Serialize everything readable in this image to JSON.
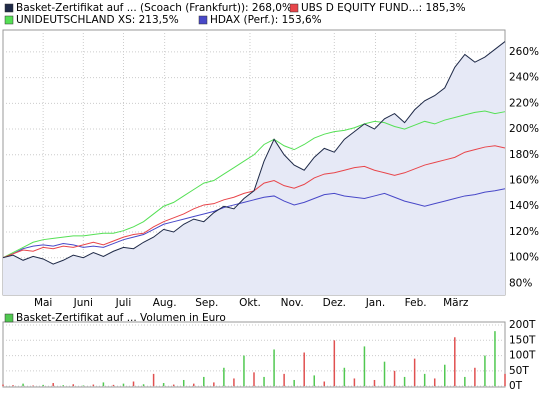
{
  "chart_data": [
    {
      "type": "line",
      "area_series": 0,
      "grid": true,
      "x": [
        0,
        1,
        2,
        3,
        4,
        5,
        6,
        7,
        8,
        9,
        10,
        11,
        12,
        13,
        14,
        15,
        16,
        17,
        18,
        19,
        20,
        21,
        22,
        23,
        24,
        25,
        26,
        27,
        28,
        29,
        30,
        31,
        32,
        33,
        34,
        35,
        36,
        37,
        38,
        39,
        40,
        41,
        42,
        43,
        44,
        45,
        46,
        47,
        48,
        49,
        50
      ],
      "xlim": [
        0,
        50
      ],
      "xticks": [
        {
          "value": 4,
          "label": "Mai"
        },
        {
          "value": 8,
          "label": "Juni"
        },
        {
          "value": 12,
          "label": "Juli"
        },
        {
          "value": 16.1,
          "label": "Aug."
        },
        {
          "value": 20.3,
          "label": "Sep."
        },
        {
          "value": 24.6,
          "label": "Okt."
        },
        {
          "value": 28.8,
          "label": "Nov."
        },
        {
          "value": 33,
          "label": "Dez."
        },
        {
          "value": 37.1,
          "label": "Jan."
        },
        {
          "value": 41.1,
          "label": "Feb."
        },
        {
          "value": 45.1,
          "label": "März"
        }
      ],
      "ylim": [
        71,
        277
      ],
      "yticks": [
        {
          "value": 80,
          "label": "80%"
        },
        {
          "value": 100,
          "label": "100%"
        },
        {
          "value": 120,
          "label": "120%"
        },
        {
          "value": 140,
          "label": "140%"
        },
        {
          "value": 160,
          "label": "160%"
        },
        {
          "value": 180,
          "label": "180%"
        },
        {
          "value": 200,
          "label": "200%"
        },
        {
          "value": 220,
          "label": "220%"
        },
        {
          "value": 240,
          "label": "240%"
        },
        {
          "value": 260,
          "label": "260%"
        }
      ],
      "series": [
        {
          "name": "Basket-Zertifikat auf ... (Scoach (Frankfurt)): 268,0%",
          "color": "#1f2a48",
          "values": [
            100,
            102,
            98,
            101,
            99,
            95,
            98,
            102,
            100,
            104,
            101,
            105,
            108,
            107,
            112,
            116,
            122,
            120,
            126,
            130,
            128,
            135,
            140,
            138,
            146,
            152,
            175,
            192,
            180,
            172,
            168,
            178,
            185,
            182,
            192,
            198,
            204,
            200,
            208,
            212,
            205,
            215,
            222,
            226,
            232,
            248,
            258,
            252,
            256,
            262,
            268
          ]
        },
        {
          "name": "UBS D EQUITY FUND...: 185,3%",
          "color": "#e8454a",
          "values": [
            100,
            103,
            106,
            105,
            108,
            107,
            109,
            108,
            110,
            112,
            110,
            113,
            116,
            118,
            119,
            124,
            128,
            131,
            134,
            138,
            141,
            142,
            145,
            147,
            150,
            152,
            158,
            160,
            156,
            154,
            157,
            162,
            165,
            166,
            168,
            170,
            171,
            168,
            166,
            164,
            166,
            169,
            172,
            174,
            176,
            178,
            182,
            184,
            186,
            187,
            185.3
          ]
        },
        {
          "name": "UNIDEUTSCHLAND XS: 213,5%",
          "color": "#55e055",
          "values": [
            100,
            104,
            108,
            112,
            114,
            115,
            116,
            117,
            117,
            118,
            119,
            119,
            121,
            124,
            128,
            134,
            140,
            143,
            148,
            153,
            158,
            160,
            165,
            170,
            175,
            180,
            188,
            192,
            187,
            184,
            188,
            193,
            196,
            198,
            199,
            201,
            204,
            206,
            205,
            202,
            200,
            203,
            206,
            204,
            207,
            209,
            211,
            213,
            214,
            212,
            213.5
          ]
        },
        {
          "name": "HDAX (Perf.): 153,6%",
          "color": "#4848c8",
          "values": [
            100,
            103,
            107,
            109,
            110,
            109,
            111,
            110,
            108,
            109,
            108,
            111,
            114,
            116,
            118,
            122,
            126,
            128,
            130,
            132,
            134,
            136,
            139,
            141,
            143,
            145,
            147,
            148,
            144,
            141,
            143,
            146,
            149,
            150,
            148,
            147,
            146,
            148,
            150,
            147,
            144,
            142,
            140,
            142,
            144,
            146,
            148,
            149,
            151,
            152,
            153.6
          ]
        }
      ]
    },
    {
      "type": "bar",
      "legend": "Basket-Zertifikat auf ... Volumen in Euro",
      "x": [
        0,
        1,
        2,
        3,
        4,
        5,
        6,
        7,
        8,
        9,
        10,
        11,
        12,
        13,
        14,
        15,
        16,
        17,
        18,
        19,
        20,
        21,
        22,
        23,
        24,
        25,
        26,
        27,
        28,
        29,
        30,
        31,
        32,
        33,
        34,
        35,
        36,
        37,
        38,
        39,
        40,
        41,
        42,
        43,
        44,
        45,
        46,
        47,
        48,
        49,
        50
      ],
      "xlim": [
        0,
        50
      ],
      "ylim": [
        -3,
        210
      ],
      "yticks": [
        {
          "value": 0,
          "label": "0T"
        },
        {
          "value": 50,
          "label": "50T"
        },
        {
          "value": 100,
          "label": "100T"
        },
        {
          "value": 150,
          "label": "150T"
        },
        {
          "value": 200,
          "label": "200T"
        }
      ],
      "values": [
        5,
        3,
        8,
        2,
        4,
        10,
        3,
        6,
        2,
        5,
        12,
        4,
        8,
        15,
        6,
        40,
        10,
        5,
        20,
        8,
        30,
        12,
        60,
        25,
        100,
        45,
        30,
        120,
        40,
        20,
        110,
        35,
        15,
        150,
        60,
        25,
        130,
        20,
        80,
        50,
        30,
        90,
        40,
        25,
        70,
        160,
        30,
        60,
        100,
        180,
        40
      ],
      "bar_colors": [
        "#e05050",
        "#e05050",
        "#50c850",
        "#e05050",
        "#50c850",
        "#e05050",
        "#50c850",
        "#e05050",
        "#50c850",
        "#e05050",
        "#50c850",
        "#e05050",
        "#50c850",
        "#e05050",
        "#50c850",
        "#e05050",
        "#50c850",
        "#e05050",
        "#50c850",
        "#e05050",
        "#50c850",
        "#e05050",
        "#50c850",
        "#e05050",
        "#50c850",
        "#e05050",
        "#50c850",
        "#50c850",
        "#e05050",
        "#50c850",
        "#e05050",
        "#50c850",
        "#e05050",
        "#e05050",
        "#50c850",
        "#e05050",
        "#50c850",
        "#e05050",
        "#50c850",
        "#e05050",
        "#50c850",
        "#e05050",
        "#50c850",
        "#e05050",
        "#50c850",
        "#e05050",
        "#50c850",
        "#e05050",
        "#50c850",
        "#50c850",
        "#e05050"
      ]
    }
  ]
}
